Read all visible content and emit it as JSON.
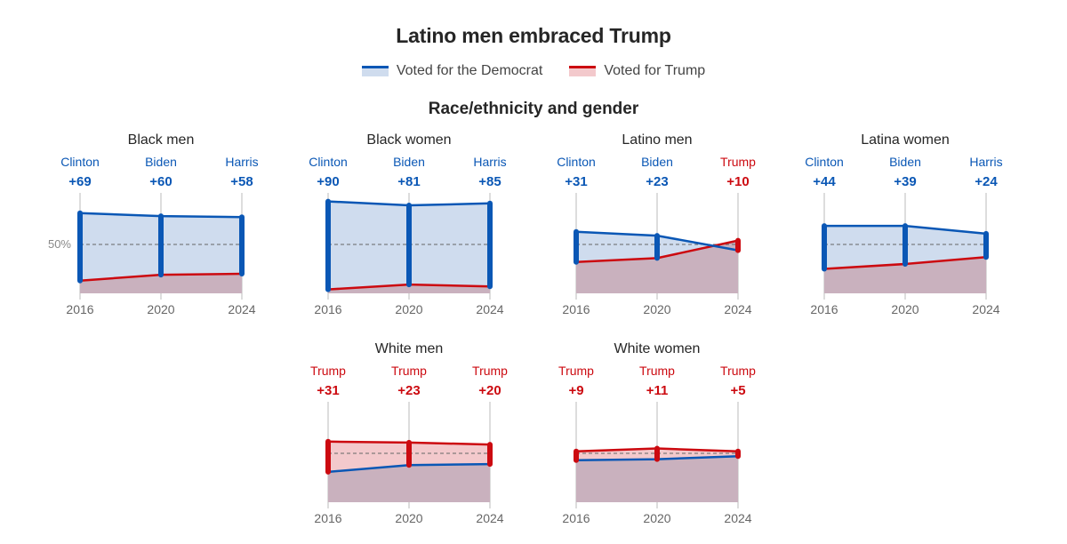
{
  "title": "Latino men embraced Trump",
  "legend": {
    "dem_label": "Voted for the Democrat",
    "rep_label": "Voted for Trump"
  },
  "subtitle": "Race/ethnicity and gender",
  "colors": {
    "dem": "#0a57b5",
    "dem_fill": "#cfdcee",
    "rep": "#cc0a10",
    "rep_fill": "#f3c9cc",
    "trump_area": "#c9b1be"
  },
  "chart_data": {
    "type": "line",
    "x": [
      "2016",
      "2020",
      "2024"
    ],
    "ylabel": "50%",
    "ylim": [
      0,
      100
    ],
    "panels": [
      {
        "name": "Black men",
        "winners": [
          "dem",
          "dem",
          "dem"
        ],
        "labels": [
          "Clinton",
          "Biden",
          "Harris"
        ],
        "margins": [
          "+69",
          "+60",
          "+58"
        ],
        "dem": [
          82,
          79,
          78
        ],
        "rep": [
          13,
          19,
          20
        ]
      },
      {
        "name": "Black women",
        "winners": [
          "dem",
          "dem",
          "dem"
        ],
        "labels": [
          "Clinton",
          "Biden",
          "Harris"
        ],
        "margins": [
          "+90",
          "+81",
          "+85"
        ],
        "dem": [
          94,
          90,
          92
        ],
        "rep": [
          4,
          9,
          7
        ]
      },
      {
        "name": "Latino men",
        "winners": [
          "dem",
          "dem",
          "rep"
        ],
        "labels": [
          "Clinton",
          "Biden",
          "Trump"
        ],
        "margins": [
          "+31",
          "+23",
          "+10"
        ],
        "dem": [
          63,
          59,
          44
        ],
        "rep": [
          32,
          36,
          54
        ]
      },
      {
        "name": "Latina women",
        "winners": [
          "dem",
          "dem",
          "dem"
        ],
        "labels": [
          "Clinton",
          "Biden",
          "Harris"
        ],
        "margins": [
          "+44",
          "+39",
          "+24"
        ],
        "dem": [
          69,
          69,
          61
        ],
        "rep": [
          25,
          30,
          37
        ]
      },
      {
        "name": "White men",
        "winners": [
          "rep",
          "rep",
          "rep"
        ],
        "labels": [
          "Trump",
          "Trump",
          "Trump"
        ],
        "margins": [
          "+31",
          "+23",
          "+20"
        ],
        "dem": [
          31,
          38,
          39
        ],
        "rep": [
          62,
          61,
          59
        ]
      },
      {
        "name": "White women",
        "winners": [
          "rep",
          "rep",
          "rep"
        ],
        "labels": [
          "Trump",
          "Trump",
          "Trump"
        ],
        "margins": [
          "+9",
          "+11",
          "+5"
        ],
        "dem": [
          43,
          44,
          47
        ],
        "rep": [
          52,
          55,
          52
        ]
      }
    ]
  }
}
